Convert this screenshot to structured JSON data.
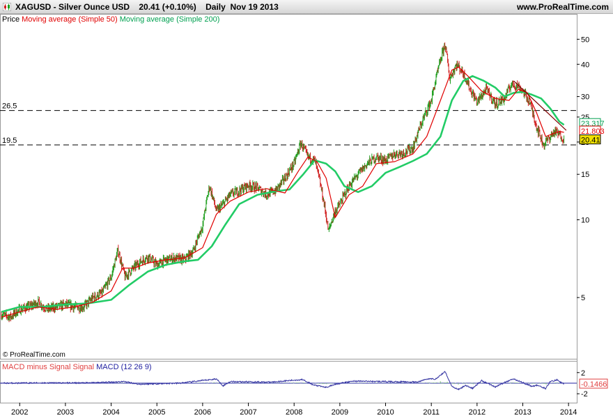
{
  "header": {
    "title_left": "XAGUSD - Silver Ounce USD    20.41 (+0.10%)    Daily  Nov 19 2013",
    "title_right": "www.ProRealTime.com"
  },
  "legend": {
    "price": "Price",
    "ma50": "Moving average (Simple 50)",
    "ma200": "Moving average (Simple 200)"
  },
  "macd_legend": {
    "signal": "MACD minus Signal Signal",
    "macd": "MACD (12 26 9)"
  },
  "copyright": "© ProRealTime.com",
  "colors": {
    "price_up": "#20a020",
    "price_down": "#d02020",
    "ma50": "#e00000",
    "ma200": "#22cc66",
    "macd": "#3030a0",
    "macd_hist": "#90c890",
    "trendline": "#800000",
    "value_ma200": "#00a050",
    "value_ma50": "#e00000",
    "value_price_bg": "#f0e000"
  },
  "chart_data": [
    {
      "type": "line",
      "title": "XAGUSD - Silver Ounce USD",
      "scale": "log",
      "ylim": [
        3.6,
        55
      ],
      "y_ticks": [
        5,
        10,
        15,
        20,
        25,
        30,
        40,
        50
      ],
      "x_ticks": [
        "2002",
        "2003",
        "2004",
        "2005",
        "2006",
        "2007",
        "2008",
        "2009",
        "2010",
        "2011",
        "2012",
        "2013",
        "2014"
      ],
      "x_range": [
        2001.6,
        2014.15
      ],
      "horizontal_lines": [
        {
          "label": "26.5",
          "value": 26.5
        },
        {
          "label": "19.5",
          "value": 19.5
        }
      ],
      "trendline": [
        {
          "x": 2012.8,
          "y": 34.5
        },
        {
          "x": 2013.95,
          "y": 22.2
        }
      ],
      "last_values": {
        "ma200": "23.317",
        "ma50": "21.803",
        "price": "20.41"
      },
      "series": [
        {
          "name": "Price",
          "x": [
            2001.6,
            2001.8,
            2002.0,
            2002.2,
            2002.4,
            2002.6,
            2002.8,
            2003.0,
            2003.2,
            2003.4,
            2003.6,
            2003.8,
            2004.0,
            2004.15,
            2004.3,
            2004.45,
            2004.6,
            2004.8,
            2005.0,
            2005.2,
            2005.4,
            2005.6,
            2005.8,
            2006.0,
            2006.15,
            2006.3,
            2006.45,
            2006.6,
            2006.8,
            2007.0,
            2007.2,
            2007.4,
            2007.6,
            2007.8,
            2008.0,
            2008.15,
            2008.3,
            2008.45,
            2008.6,
            2008.75,
            2008.9,
            2009.0,
            2009.2,
            2009.4,
            2009.6,
            2009.8,
            2010.0,
            2010.2,
            2010.4,
            2010.6,
            2010.8,
            2011.0,
            2011.15,
            2011.3,
            2011.4,
            2011.55,
            2011.7,
            2011.85,
            2012.0,
            2012.2,
            2012.4,
            2012.6,
            2012.75,
            2012.9,
            2013.0,
            2013.15,
            2013.3,
            2013.45,
            2013.55,
            2013.7,
            2013.85,
            2013.9
          ],
          "values": [
            4.3,
            4.2,
            4.5,
            4.6,
            4.8,
            4.5,
            4.6,
            4.7,
            4.6,
            4.6,
            5.0,
            5.2,
            6.0,
            7.6,
            6.0,
            6.4,
            6.8,
            7.2,
            6.7,
            7.0,
            7.1,
            7.0,
            7.6,
            9.5,
            13.5,
            10.8,
            11.5,
            12.5,
            13.0,
            13.6,
            13.3,
            12.5,
            13.0,
            14.5,
            16.5,
            19.8,
            17.5,
            17.0,
            13.0,
            9.0,
            10.8,
            11.5,
            13.5,
            15.0,
            16.5,
            17.5,
            17.0,
            18.0,
            18.2,
            19.0,
            24.0,
            29.0,
            38.0,
            48.0,
            35.0,
            40.0,
            37.0,
            32.0,
            28.5,
            32.0,
            28.0,
            29.5,
            33.5,
            33.0,
            31.5,
            28.5,
            23.0,
            19.5,
            20.5,
            22.0,
            21.0,
            20.41
          ]
        },
        {
          "name": "Moving average (Simple 50)",
          "x": [
            2001.6,
            2002.0,
            2002.4,
            2002.8,
            2003.2,
            2003.6,
            2004.0,
            2004.25,
            2004.5,
            2004.8,
            2005.2,
            2005.6,
            2006.0,
            2006.3,
            2006.6,
            2007.0,
            2007.4,
            2007.8,
            2008.1,
            2008.3,
            2008.5,
            2008.7,
            2008.9,
            2009.2,
            2009.5,
            2009.8,
            2010.2,
            2010.6,
            2010.9,
            2011.2,
            2011.45,
            2011.6,
            2011.8,
            2012.1,
            2012.4,
            2012.7,
            2012.9,
            2013.1,
            2013.3,
            2013.5,
            2013.65,
            2013.8,
            2013.9
          ],
          "values": [
            4.2,
            4.4,
            4.6,
            4.5,
            4.6,
            4.8,
            5.3,
            6.5,
            6.5,
            6.8,
            7.0,
            7.1,
            7.8,
            10.5,
            11.8,
            12.8,
            13.2,
            12.7,
            15.5,
            17.5,
            16.8,
            14.5,
            10.2,
            12.5,
            13.5,
            16.5,
            16.8,
            18.0,
            21.0,
            29.0,
            38.0,
            39.0,
            36.0,
            31.5,
            29.5,
            29.0,
            32.0,
            31.0,
            26.0,
            21.0,
            21.5,
            22.0,
            21.8
          ]
        },
        {
          "name": "Moving average (Simple 200)",
          "x": [
            2001.6,
            2002.0,
            2002.5,
            2003.0,
            2003.5,
            2004.0,
            2004.4,
            2004.8,
            2005.2,
            2005.6,
            2005.9,
            2006.2,
            2006.5,
            2006.8,
            2007.2,
            2007.6,
            2007.9,
            2008.2,
            2008.45,
            2008.7,
            2008.9,
            2009.1,
            2009.4,
            2009.7,
            2010.0,
            2010.3,
            2010.6,
            2010.9,
            2011.2,
            2011.45,
            2011.7,
            2011.9,
            2012.15,
            2012.4,
            2012.6,
            2012.8,
            2013.0,
            2013.2,
            2013.4,
            2013.6,
            2013.8,
            2013.9
          ],
          "values": [
            4.4,
            4.6,
            4.6,
            4.7,
            4.75,
            4.9,
            5.6,
            6.3,
            6.7,
            6.9,
            7.0,
            7.9,
            9.6,
            11.5,
            12.5,
            12.9,
            13.1,
            15.0,
            17.0,
            16.5,
            15.4,
            13.5,
            12.8,
            13.5,
            15.2,
            16.0,
            16.9,
            18.0,
            21.0,
            29.0,
            34.5,
            36.0,
            34.5,
            32.5,
            30.0,
            31.0,
            31.3,
            30.5,
            29.5,
            27.0,
            24.0,
            23.317
          ]
        }
      ]
    },
    {
      "type": "line",
      "title": "MACD (12 26 9)",
      "ylim": [
        -2.5,
        2.5
      ],
      "y_ticks": [
        2,
        -2
      ],
      "last_value": "-0.1466",
      "series": [
        {
          "name": "MACD (12 26 9)",
          "x": [
            2001.6,
            2002.5,
            2003.5,
            2004.3,
            2004.6,
            2005.5,
            2006.3,
            2006.45,
            2006.6,
            2007.5,
            2008.2,
            2008.4,
            2008.7,
            2008.9,
            2009.3,
            2010.0,
            2010.7,
            2010.9,
            2011.1,
            2011.3,
            2011.45,
            2011.6,
            2011.75,
            2011.9,
            2012.1,
            2012.4,
            2012.7,
            2012.8,
            2013.0,
            2013.2,
            2013.3,
            2013.5,
            2013.6,
            2013.75,
            2013.9
          ],
          "values": [
            0.0,
            0.05,
            0.05,
            0.3,
            -0.2,
            0.0,
            0.8,
            -0.5,
            0.3,
            0.2,
            0.7,
            -0.3,
            -0.8,
            -0.2,
            0.4,
            0.3,
            0.2,
            0.8,
            0.8,
            2.2,
            -0.6,
            -1.2,
            -0.4,
            -1.0,
            0.5,
            -0.7,
            0.5,
            0.8,
            0.1,
            -0.6,
            -0.4,
            -1.0,
            0.3,
            0.6,
            -0.15
          ]
        }
      ]
    }
  ]
}
